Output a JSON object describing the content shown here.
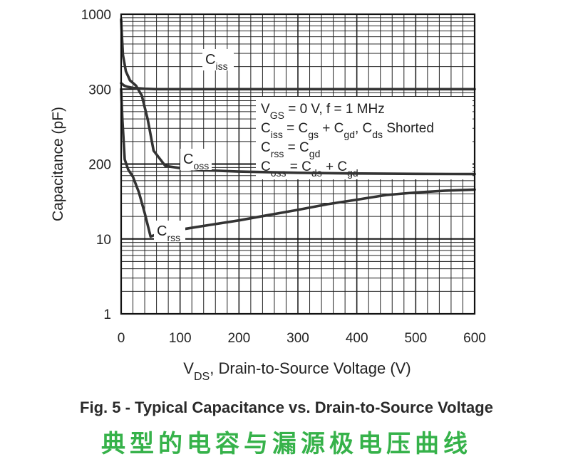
{
  "chart_data": {
    "type": "line",
    "ylabel": "Capacitance (pF)",
    "xlabel_main": "V",
    "xlabel_sub": "DS",
    "xlabel_rest": ", Drain-to-Source Voltage (V)",
    "xlim": [
      0,
      600
    ],
    "x_ticks": [
      0,
      100,
      200,
      300,
      400,
      500,
      600
    ],
    "y_tick_labels": [
      "1000",
      "300",
      "200",
      "10",
      "1"
    ],
    "grid": true,
    "series": [
      {
        "name": "Ciss",
        "label_main": "C",
        "label_sub": "iss",
        "x": [
          0,
          2,
          5,
          10,
          20,
          40,
          60,
          100,
          200,
          300,
          400,
          500,
          600
        ],
        "y": [
          330,
          325,
          318,
          312,
          306,
          302,
          300,
          300,
          300,
          300,
          300,
          300,
          300
        ]
      },
      {
        "name": "Coss",
        "label_main": "C",
        "label_sub": "oss",
        "x": [
          0,
          1,
          3,
          8,
          15,
          25,
          35,
          45,
          55,
          75,
          100,
          150,
          200,
          300,
          400,
          500,
          600
        ],
        "y": [
          920,
          750,
          520,
          400,
          345,
          318,
          290,
          255,
          215,
          185,
          170,
          155,
          148,
          141,
          137,
          135,
          134
        ]
      },
      {
        "name": "Crss",
        "label_main": "C",
        "label_sub": "rss",
        "x": [
          0,
          2,
          6,
          12,
          20,
          30,
          40,
          50,
          60,
          80,
          100,
          150,
          200,
          250,
          300,
          350,
          400,
          450,
          500,
          550,
          600
        ],
        "y": [
          300,
          255,
          205,
          160,
          120,
          65,
          28,
          11,
          12,
          13,
          14.5,
          17.5,
          21,
          26,
          32,
          40,
          48,
          58,
          64,
          69,
          72
        ]
      }
    ],
    "legend_lines": [
      {
        "parts": [
          [
            "V",
            ""
          ],
          [
            "GS",
            "sub"
          ],
          [
            " = 0 V, f = 1 MHz",
            ""
          ]
        ]
      },
      {
        "parts": [
          [
            "C",
            ""
          ],
          [
            "iss",
            "sub"
          ],
          [
            " = C",
            ""
          ],
          [
            "gs",
            "sub"
          ],
          [
            " + C",
            ""
          ],
          [
            "gd",
            "sub"
          ],
          [
            ", C",
            ""
          ],
          [
            "ds",
            "sub"
          ],
          [
            " Shorted",
            ""
          ]
        ]
      },
      {
        "parts": [
          [
            "C",
            ""
          ],
          [
            "rss",
            "sub"
          ],
          [
            " = C",
            ""
          ],
          [
            "gd",
            "sub"
          ]
        ]
      },
      {
        "parts": [
          [
            "C",
            ""
          ],
          [
            "oss",
            "sub"
          ],
          [
            " = C",
            ""
          ],
          [
            "ds",
            "sub"
          ],
          [
            " + C",
            ""
          ],
          [
            "gd",
            "sub"
          ]
        ]
      }
    ],
    "legend_placement": "right-middle",
    "line_color": "#333333"
  },
  "caption": "Fig. 5 - Typical Capacitance vs. Drain-to-Source Voltage",
  "caption_cn": "典型的电容与漏源极电压曲线"
}
